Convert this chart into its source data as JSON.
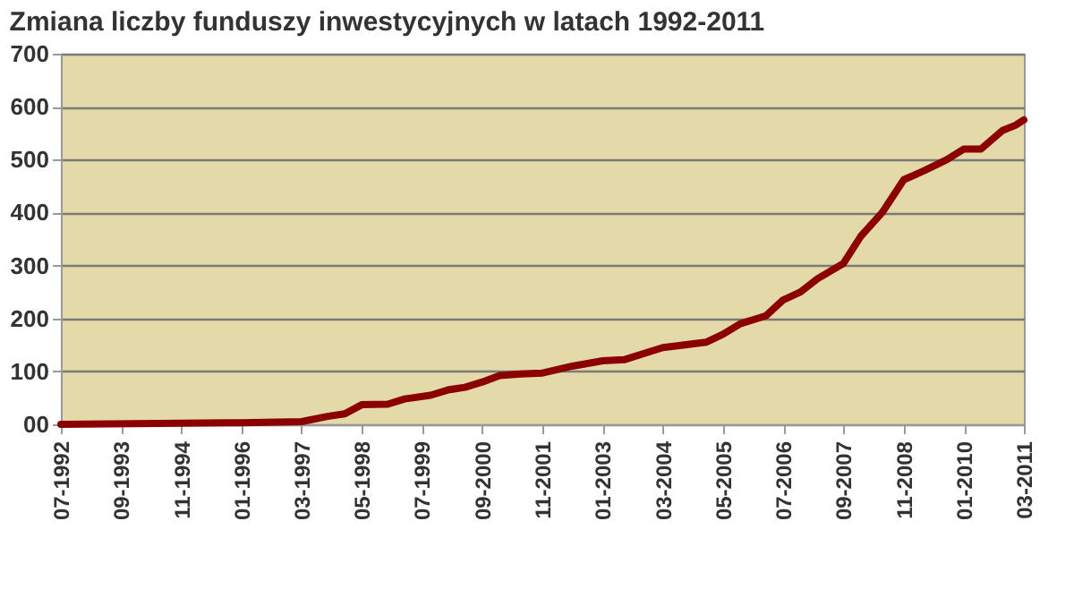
{
  "chart_data": {
    "type": "line",
    "title": "Zmiana liczby funduszy inwestycyjnych w latach 1992-2011",
    "x": [
      "1992-07",
      "1996-01",
      "1997-03",
      "1997-09",
      "1998-01",
      "1998-05",
      "1998-11",
      "1999-03",
      "1999-09",
      "2000-01",
      "2000-05",
      "2000-09",
      "2001-01",
      "2001-06",
      "2001-11",
      "2002-06",
      "2003-01",
      "2003-06",
      "2004-03",
      "2004-06",
      "2005-01",
      "2005-05",
      "2005-09",
      "2006-03",
      "2006-07",
      "2006-11",
      "2007-03",
      "2007-09",
      "2008-01",
      "2008-06",
      "2008-11",
      "2009-04",
      "2009-09",
      "2010-01",
      "2010-05",
      "2010-10",
      "2011-01",
      "2011-03"
    ],
    "series": [
      {
        "color": "#8b0000",
        "values": [
          0,
          3,
          5,
          15,
          20,
          37,
          38,
          48,
          55,
          65,
          70,
          80,
          92,
          95,
          97,
          110,
          120,
          122,
          145,
          148,
          155,
          170,
          190,
          205,
          235,
          250,
          275,
          304,
          355,
          400,
          462,
          480,
          500,
          520,
          520,
          555,
          565,
          575
        ]
      }
    ],
    "xlim": [
      "1992-07",
      "2011-03"
    ],
    "xticks": [
      {
        "value": "1992-07",
        "label": "07-1992"
      },
      {
        "value": "1993-09",
        "label": "09-1993"
      },
      {
        "value": "1994-11",
        "label": "11-1994"
      },
      {
        "value": "1996-01",
        "label": "01-1996"
      },
      {
        "value": "1997-03",
        "label": "03-1997"
      },
      {
        "value": "1998-05",
        "label": "05-1998"
      },
      {
        "value": "1999-07",
        "label": "07-1999"
      },
      {
        "value": "2000-09",
        "label": "09-2000"
      },
      {
        "value": "2001-11",
        "label": "11-2001"
      },
      {
        "value": "2003-01",
        "label": "01-2003"
      },
      {
        "value": "2004-03",
        "label": "03-2004"
      },
      {
        "value": "2005-05",
        "label": "05-2005"
      },
      {
        "value": "2006-07",
        "label": "07-2006"
      },
      {
        "value": "2007-09",
        "label": "09-2007"
      },
      {
        "value": "2008-11",
        "label": "11-2008"
      },
      {
        "value": "2010-01",
        "label": "01-2010"
      },
      {
        "value": "2011-03",
        "label": "03-2011"
      }
    ],
    "ylim": [
      0,
      700
    ],
    "yticks": [
      {
        "value": 0,
        "label": "00"
      },
      100,
      200,
      300,
      400,
      500,
      600,
      700
    ],
    "grid": "y",
    "legend": false,
    "marker": "none",
    "line_style": "solid"
  }
}
